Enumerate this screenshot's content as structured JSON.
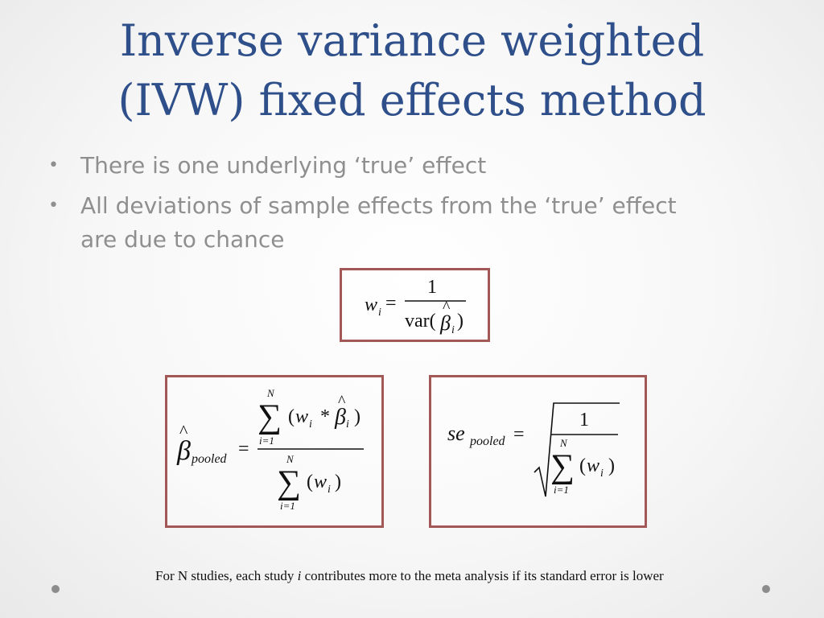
{
  "slide": {
    "title_lines": [
      "Inverse variance weighted",
      "(IVW) fixed effects method"
    ],
    "bullets": [
      "There is one underlying ‘true’ effect",
      "All deviations of sample effects from the ‘true’ effect are due to chance"
    ],
    "footnote": {
      "before": "For N studies, each study ",
      "italic": "i",
      "after": " contributes more to the meta analysis if its standard error is lower"
    }
  },
  "formulas": {
    "weight": {
      "lhs": "w",
      "lhs_sub": "i",
      "numerator": "1",
      "den_prefix": "var(",
      "beta": "β",
      "hat": "^",
      "beta_sub": "i",
      "den_suffix": ")"
    },
    "beta_pooled": {
      "lhs": "β",
      "hat": "^",
      "lhs_sub": "pooled",
      "sum_upper": "N",
      "sum_lower": "i=1",
      "sigma": "∑",
      "num_term": "(w",
      "num_sub": "i",
      "num_mult": " * ",
      "num_beta": "β",
      "num_beta_sub": "i",
      "close": ")",
      "den_term": "(w",
      "den_sub": "i"
    },
    "se_pooled": {
      "lhs": "se",
      "lhs_sub": "pooled",
      "numerator": "1",
      "sum_upper": "N",
      "sum_lower": "i=1",
      "sigma": "∑",
      "den_term": "(w",
      "den_sub": "i",
      "close": ")"
    }
  },
  "colors": {
    "title": "#2e4f8a",
    "bullet_text": "#8f8f8f",
    "box_border": "#a35858"
  }
}
